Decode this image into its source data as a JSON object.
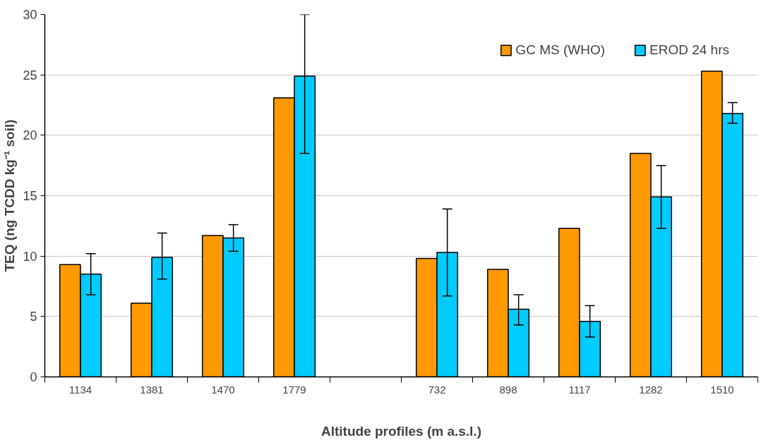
{
  "chart_data": {
    "type": "bar",
    "xlabel": "Altitude profiles (m a.s.l.)",
    "ylabel": "TEQ (ng TCDD kg⁻¹ soil)",
    "categories": [
      "1134",
      "1381",
      "1470",
      "1779",
      null,
      "732",
      "898",
      "1117",
      "1282",
      "1510"
    ],
    "series": [
      {
        "name": "GC MS (WHO)",
        "color": "#ff9900",
        "values": [
          9.3,
          6.1,
          11.7,
          23.1,
          null,
          9.8,
          8.9,
          12.3,
          18.5,
          25.3
        ]
      },
      {
        "name": "EROD 24 hrs",
        "color": "#00ccff",
        "values": [
          8.5,
          9.9,
          11.5,
          24.9,
          null,
          10.3,
          5.6,
          4.6,
          14.9,
          21.8
        ],
        "errors": [
          [
            6.8,
            10.2
          ],
          [
            8.1,
            11.9
          ],
          [
            10.4,
            12.6
          ],
          [
            18.5,
            30
          ],
          null,
          [
            6.7,
            13.9
          ],
          [
            4.3,
            6.8
          ],
          [
            3.3,
            5.9
          ],
          [
            12.3,
            17.5
          ],
          [
            21.0,
            22.7
          ]
        ]
      }
    ],
    "ylim": [
      0,
      30
    ],
    "yticks": [
      0,
      5,
      10,
      15,
      20,
      25,
      30
    ],
    "grid": "y",
    "legend": "top right"
  }
}
